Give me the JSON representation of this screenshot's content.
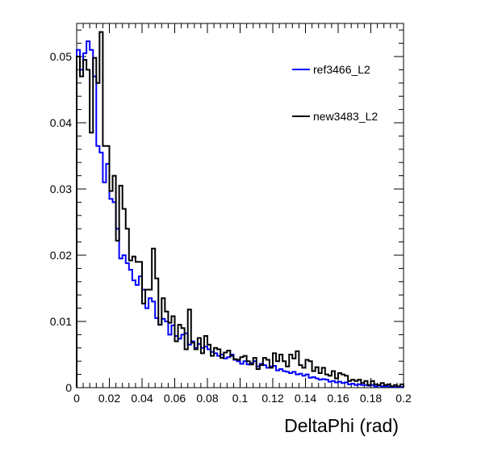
{
  "chart_data": {
    "type": "line",
    "style": "step-histogram",
    "title": "",
    "xlabel": "DeltaPhi (rad)",
    "ylabel": "",
    "xlim": [
      0,
      0.2
    ],
    "ylim": [
      0,
      0.055
    ],
    "grid": false,
    "legend_position": "top-right",
    "x_ticks": [
      {
        "value": 0,
        "label": "0"
      },
      {
        "value": 0.02,
        "label": "0.02"
      },
      {
        "value": 0.04,
        "label": "0.04"
      },
      {
        "value": 0.06,
        "label": "0.06"
      },
      {
        "value": 0.08,
        "label": "0.08"
      },
      {
        "value": 0.1,
        "label": "0.1"
      },
      {
        "value": 0.12,
        "label": "0.12"
      },
      {
        "value": 0.14,
        "label": "0.14"
      },
      {
        "value": 0.16,
        "label": "0.16"
      },
      {
        "value": 0.18,
        "label": "0.18"
      },
      {
        "value": 0.2,
        "label": "0.2"
      }
    ],
    "y_ticks": [
      {
        "value": 0,
        "label": "0"
      },
      {
        "value": 0.01,
        "label": "0.01"
      },
      {
        "value": 0.02,
        "label": "0.02"
      },
      {
        "value": 0.03,
        "label": "0.03"
      },
      {
        "value": 0.04,
        "label": "0.04"
      },
      {
        "value": 0.05,
        "label": "0.05"
      }
    ],
    "bin_edges": {
      "start": 0,
      "end": 0.2,
      "count": 100
    },
    "series": [
      {
        "name": "ref3466_L2",
        "color": "#0000ff",
        "values": [
          0.051,
          0.048,
          0.0505,
          0.0523,
          0.051,
          0.047,
          0.0365,
          0.0355,
          0.031,
          0.0338,
          0.0285,
          0.028,
          0.024,
          0.0195,
          0.02,
          0.0188,
          0.0178,
          0.0162,
          0.0155,
          0.0168,
          0.0148,
          0.012,
          0.0135,
          0.013,
          0.0105,
          0.0095,
          0.0104,
          0.01,
          0.008,
          0.0094,
          0.0078,
          0.0074,
          0.008,
          0.0082,
          0.0065,
          0.007,
          0.006,
          0.0066,
          0.006,
          0.0062,
          0.0058,
          0.0054,
          0.0052,
          0.0048,
          0.005,
          0.0044,
          0.0046,
          0.005,
          0.0042,
          0.004,
          0.0036,
          0.004,
          0.0035,
          0.0037,
          0.004,
          0.0032,
          0.0036,
          0.0034,
          0.003,
          0.0032,
          0.0033,
          0.0026,
          0.0028,
          0.0025,
          0.0024,
          0.0022,
          0.0024,
          0.002,
          0.0021,
          0.0018,
          0.002,
          0.0015,
          0.0016,
          0.0014,
          0.0012,
          0.0013,
          0.0012,
          0.0009,
          0.001,
          0.0008,
          0.0009,
          0.0007,
          0.0008,
          0.0005,
          0.0006,
          0.0004,
          0.0005,
          0.0004,
          0.0004,
          0.0003,
          0.0004,
          0.0002,
          0.0003,
          0.0002,
          0.0002,
          0.0002,
          0.0001,
          0.0001,
          0.0001,
          0.0001
        ]
      },
      {
        "name": "new3483_L2",
        "color": "#000000",
        "values": [
          0.05,
          0.047,
          0.0495,
          0.048,
          0.0385,
          0.0498,
          0.046,
          0.0537,
          0.0365,
          0.0365,
          0.0297,
          0.032,
          0.0222,
          0.0305,
          0.027,
          0.024,
          0.0192,
          0.0198,
          0.019,
          0.019,
          0.0127,
          0.0148,
          0.0148,
          0.021,
          0.0165,
          0.0095,
          0.0135,
          0.0115,
          0.0098,
          0.0108,
          0.007,
          0.0095,
          0.009,
          0.0058,
          0.0118,
          0.0068,
          0.0058,
          0.0075,
          0.0052,
          0.0078,
          0.0065,
          0.0048,
          0.006,
          0.0058,
          0.0045,
          0.0053,
          0.0056,
          0.0048,
          0.0043,
          0.0042,
          0.0046,
          0.0048,
          0.004,
          0.0035,
          0.0045,
          0.0028,
          0.0034,
          0.0045,
          0.0042,
          0.003,
          0.0052,
          0.004,
          0.005,
          0.004,
          0.0032,
          0.005,
          0.0044,
          0.0055,
          0.0034,
          0.003,
          0.0042,
          0.004,
          0.0025,
          0.0031,
          0.0022,
          0.003,
          0.002,
          0.0018,
          0.0025,
          0.0014,
          0.0022,
          0.002,
          0.0018,
          0.001,
          0.0012,
          0.001,
          0.0012,
          0.0007,
          0.001,
          0.0004,
          0.001,
          0.0005,
          0.0004,
          0.0007,
          0.0004,
          0.0005,
          0.0002,
          0.0004,
          0.0002,
          0.0005
        ]
      }
    ]
  }
}
